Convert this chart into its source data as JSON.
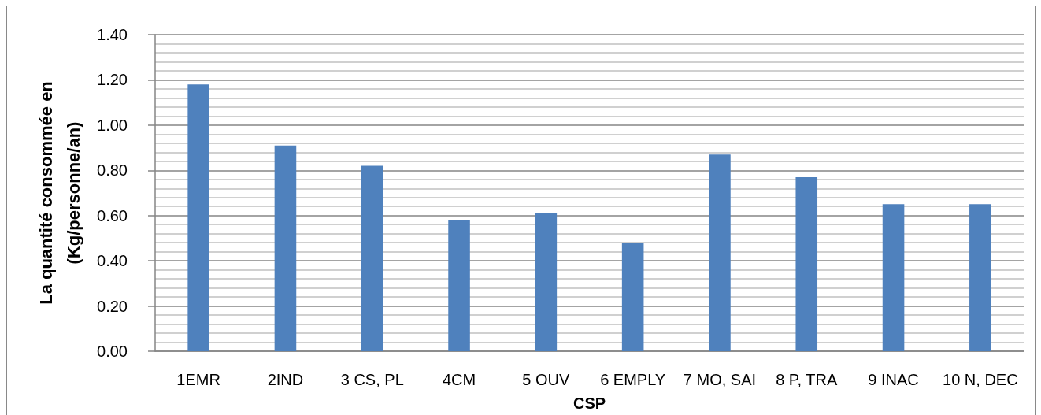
{
  "chart_data": {
    "type": "bar",
    "xlabel": "CSP",
    "ylabel": "La quantité consommée en (Kg/personne/an)",
    "categories": [
      "1EMR",
      "2IND",
      "3 CS, PL",
      "4CM",
      "5 OUV",
      "6 EMPLY",
      "7 MO, SAI",
      "8 P, TRA",
      "9 INAC",
      "10 N, DEC"
    ],
    "values": [
      1.18,
      0.91,
      0.82,
      0.58,
      0.61,
      0.48,
      0.87,
      0.77,
      0.65,
      0.65
    ],
    "color": "#4f81bd",
    "ylim": [
      0,
      1.4
    ],
    "yticks": [
      {
        "value": 0,
        "label": "0.00"
      },
      {
        "value": 0.04,
        "label": null
      },
      {
        "value": 0.08,
        "label": null
      },
      {
        "value": 0.12,
        "label": null
      },
      {
        "value": 0.16,
        "label": null
      },
      {
        "value": 0.2,
        "label": "0.20"
      },
      {
        "value": 0.24,
        "label": null
      },
      {
        "value": 0.28,
        "label": null
      },
      {
        "value": 0.32,
        "label": null
      },
      {
        "value": 0.36,
        "label": null
      },
      {
        "value": 0.4,
        "label": "0.40"
      },
      {
        "value": 0.44,
        "label": null
      },
      {
        "value": 0.48,
        "label": null
      },
      {
        "value": 0.52,
        "label": null
      },
      {
        "value": 0.56,
        "label": null
      },
      {
        "value": 0.6,
        "label": "0.60"
      },
      {
        "value": 0.64,
        "label": null
      },
      {
        "value": 0.68,
        "label": null
      },
      {
        "value": 0.72,
        "label": null
      },
      {
        "value": 0.76,
        "label": null
      },
      {
        "value": 0.8,
        "label": "0.80"
      },
      {
        "value": 0.84,
        "label": null
      },
      {
        "value": 0.88,
        "label": null
      },
      {
        "value": 0.92,
        "label": null
      },
      {
        "value": 0.96,
        "label": null
      },
      {
        "value": 1,
        "label": "1.00"
      },
      {
        "value": 1.04,
        "label": null
      },
      {
        "value": 1.08,
        "label": null
      },
      {
        "value": 1.12,
        "label": null
      },
      {
        "value": 1.16,
        "label": null
      },
      {
        "value": 1.2,
        "label": "1.20"
      },
      {
        "value": 1.24,
        "label": null
      },
      {
        "value": 1.28,
        "label": null
      },
      {
        "value": 1.32,
        "label": null
      },
      {
        "value": 1.36,
        "label": null
      },
      {
        "value": 1.4,
        "label": "1.40"
      }
    ],
    "grid": "y"
  }
}
